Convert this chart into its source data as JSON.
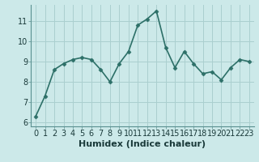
{
  "x": [
    0,
    1,
    2,
    3,
    4,
    5,
    6,
    7,
    8,
    9,
    10,
    11,
    12,
    13,
    14,
    15,
    16,
    17,
    18,
    19,
    20,
    21,
    22,
    23
  ],
  "y": [
    6.3,
    7.3,
    8.6,
    8.9,
    9.1,
    9.2,
    9.1,
    8.6,
    8.0,
    8.9,
    9.5,
    10.8,
    11.1,
    11.5,
    9.7,
    8.7,
    9.5,
    8.9,
    8.4,
    8.5,
    8.1,
    8.7,
    9.1,
    9.0
  ],
  "xlabel": "Humidex (Indice chaleur)",
  "bg_color": "#cce9e9",
  "line_color": "#2d7068",
  "marker_color": "#2d7068",
  "grid_color": "#aacfcf",
  "axis_color": "#5a9090",
  "ylim": [
    5.8,
    11.8
  ],
  "xlim": [
    -0.5,
    23.5
  ],
  "yticks": [
    6,
    7,
    8,
    9,
    10,
    11
  ],
  "xticks": [
    0,
    1,
    2,
    3,
    4,
    5,
    6,
    7,
    8,
    9,
    10,
    11,
    12,
    13,
    14,
    15,
    16,
    17,
    18,
    19,
    20,
    21,
    22,
    23
  ],
  "xtick_labels": [
    "0",
    "1",
    "2",
    "3",
    "4",
    "5",
    "6",
    "7",
    "8",
    "9",
    "10",
    "11",
    "12",
    "13",
    "14",
    "15",
    "16",
    "17",
    "18",
    "19",
    "20",
    "21",
    "22",
    "23"
  ],
  "xlabel_fontsize": 8,
  "tick_fontsize": 7,
  "line_width": 1.2,
  "marker_size": 2.5
}
